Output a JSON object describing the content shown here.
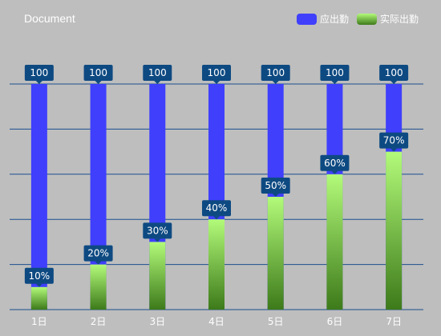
{
  "title": "Document",
  "legend": {
    "items": [
      {
        "label": "应出勤",
        "color": "#3f3ffc"
      },
      {
        "label": "实际出勤",
        "color_top": "#b3fb7a",
        "color_bottom": "#3d7a1a"
      }
    ]
  },
  "chart_data": {
    "type": "bar",
    "categories": [
      "1日",
      "2日",
      "3日",
      "4日",
      "5日",
      "6日",
      "7日"
    ],
    "series": [
      {
        "name": "应出勤",
        "values": [
          100,
          100,
          100,
          100,
          100,
          100,
          100
        ],
        "labels": [
          "100",
          "100",
          "100",
          "100",
          "100",
          "100",
          "100"
        ]
      },
      {
        "name": "实际出勤",
        "values": [
          10,
          20,
          30,
          40,
          50,
          60,
          70
        ],
        "labels": [
          "10%",
          "20%",
          "30%",
          "40%",
          "50%",
          "60%",
          "70%"
        ]
      }
    ],
    "ylim": [
      0,
      100
    ],
    "grid": true,
    "legend_position": "top-right",
    "colors": {
      "expected": "#3f3ffc",
      "actual_top": "#b3fb7a",
      "actual_bottom": "#3d7a1a",
      "callout": "#0e4a82",
      "gridline": "#1b4f8f"
    }
  }
}
